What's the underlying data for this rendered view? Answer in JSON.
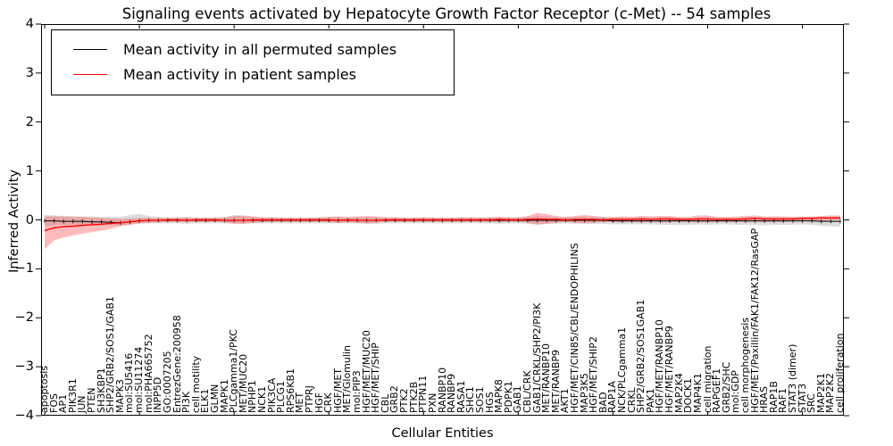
{
  "title": "Signaling events activated by Hepatocyte Growth Factor Receptor (c-Met) -- 54 samples",
  "axes": {
    "ylabel": "Inferred Activity",
    "xlabel": "Cellular Entities",
    "yticks": [
      "4",
      "3",
      "2",
      "1",
      "0",
      "−1",
      "−2",
      "−3",
      "−4"
    ],
    "ylim": [
      -4,
      4
    ]
  },
  "legend": [
    {
      "label": "Mean activity in all permuted samples",
      "color": "#000000"
    },
    {
      "label": "Mean activity in patient samples",
      "color": "#ff0000"
    }
  ],
  "colors": {
    "permuted_line": "#000000",
    "permuted_band": "#bfbfbf",
    "patient_line": "#ff0000",
    "patient_band": "#ff5555"
  },
  "chart_data": {
    "type": "line",
    "title": "Signaling events activated by Hepatocyte Growth Factor Receptor (c-Met) -- 54 samples",
    "xlabel": "Cellular Entities",
    "ylabel": "Inferred Activity",
    "ylim": [
      -4,
      4
    ],
    "grid": false,
    "legend_position": "upper left",
    "categories": [
      "apoptosis",
      "FOS",
      "AP1",
      "PIK3R1",
      "JUN",
      "PTEN",
      "SH3KBP1",
      "SHP2/GRB2/SOS1/GAB1",
      "MAPK3",
      "mol:SU5416",
      "mol:SU11274",
      "mol:PHA665752",
      "INPP5D",
      "GO:0007205",
      "EntrezGene:200958",
      "PI3K",
      "cell motility",
      "ELK1",
      "GLMN",
      "MAPK1",
      "PLCgamma1/PKC",
      "MET/MUC20",
      "NPHP1",
      "NCK1",
      "PIK3CA",
      "PLCG1",
      "RPS6KB1",
      "MET",
      "PTPRJ",
      "HGF",
      "CRK",
      "HGF/MET",
      "MET/Glomulin",
      "mol:PIP3",
      "HGF/MET/MUC20",
      "HGF/MET/SHIP",
      "CBL",
      "GRB2",
      "PTK2",
      "PTK2B",
      "PTPN11",
      "PXN",
      "RANBP10",
      "RANBP9",
      "RASA1",
      "SHC1",
      "SOS1",
      "HGS",
      "MAPK8",
      "PDPK1",
      "GAB1",
      "CBL/CRK",
      "GAB1/CRKL/SHP2/PI3K",
      "MET/RANBP10",
      "MET/RANBP9",
      "AKT1",
      "HGF/MET/CIN85/CBL/ENDOPHILINS",
      "MAP3K5",
      "HGF/MET/SHIP2",
      "BAD",
      "RAP1A",
      "NCK/PLCgamma1",
      "CRKL",
      "SHP2/GRB2/SOS1GAB1",
      "PAK1",
      "HGF/MET/RANBP10",
      "HGF/MET/RANBP9",
      "MAP2K4",
      "DOCK1",
      "MAP4K1",
      "cell migration",
      "RAPGEF1",
      "GRB2/SHC",
      "mol:GDP",
      "cell morphogenesis",
      "HGF/MET/Paxillin/FAK1/FAK12/RasGAP",
      "HRAS",
      "RAP1B",
      "RAF1",
      "STAT3 (dimer)",
      "STAT3",
      "SRC",
      "MAP2K1",
      "MAP2K2",
      "cell proliferation"
    ],
    "series": [
      {
        "name": "Mean activity in all permuted samples",
        "color": "#000000",
        "band_color": "#bfbfbf",
        "values": [
          -0.02,
          -0.02,
          -0.03,
          -0.03,
          -0.03,
          -0.04,
          -0.04,
          -0.05,
          -0.06,
          -0.04,
          -0.02,
          -0.01,
          -0.01,
          -0.01,
          -0.01,
          -0.01,
          -0.01,
          -0.01,
          -0.01,
          -0.01,
          -0.01,
          -0.01,
          -0.01,
          -0.01,
          -0.01,
          -0.01,
          -0.01,
          -0.01,
          -0.01,
          -0.01,
          -0.01,
          -0.01,
          -0.01,
          -0.01,
          -0.01,
          -0.01,
          -0.01,
          -0.01,
          -0.01,
          -0.01,
          -0.01,
          -0.01,
          -0.01,
          -0.01,
          -0.01,
          -0.01,
          -0.01,
          -0.01,
          -0.01,
          -0.01,
          -0.01,
          -0.01,
          -0.01,
          -0.01,
          -0.01,
          -0.01,
          -0.01,
          -0.01,
          -0.01,
          -0.01,
          -0.02,
          -0.02,
          -0.02,
          -0.02,
          -0.02,
          -0.02,
          -0.02,
          -0.02,
          -0.02,
          -0.02,
          -0.02,
          -0.02,
          -0.02,
          -0.02,
          -0.02,
          -0.02,
          -0.02,
          -0.02,
          -0.02,
          -0.02,
          -0.02,
          -0.02,
          -0.03,
          -0.03,
          -0.03
        ],
        "band_upper": [
          0.1,
          0.09,
          0.08,
          0.08,
          0.07,
          0.07,
          0.06,
          0.06,
          0.06,
          0.1,
          0.12,
          0.08,
          0.06,
          0.05,
          0.05,
          0.06,
          0.05,
          0.05,
          0.05,
          0.06,
          0.1,
          0.08,
          0.06,
          0.05,
          0.05,
          0.05,
          0.05,
          0.05,
          0.05,
          0.05,
          0.06,
          0.06,
          0.05,
          0.06,
          0.06,
          0.06,
          0.05,
          0.05,
          0.05,
          0.05,
          0.05,
          0.05,
          0.05,
          0.05,
          0.05,
          0.05,
          0.05,
          0.05,
          0.06,
          0.05,
          0.05,
          0.06,
          0.08,
          0.07,
          0.06,
          0.05,
          0.06,
          0.07,
          0.06,
          0.05,
          0.05,
          0.05,
          0.05,
          0.06,
          0.05,
          0.06,
          0.06,
          0.05,
          0.05,
          0.06,
          0.06,
          0.05,
          0.05,
          0.05,
          0.06,
          0.06,
          0.05,
          0.05,
          0.05,
          0.05,
          0.05,
          0.05,
          0.06,
          0.06,
          0.07
        ],
        "band_lower": [
          -0.12,
          -0.11,
          -0.1,
          -0.1,
          -0.1,
          -0.1,
          -0.1,
          -0.11,
          -0.12,
          -0.1,
          -0.08,
          -0.07,
          -0.07,
          -0.07,
          -0.07,
          -0.08,
          -0.07,
          -0.07,
          -0.07,
          -0.07,
          -0.08,
          -0.08,
          -0.07,
          -0.07,
          -0.07,
          -0.07,
          -0.07,
          -0.07,
          -0.07,
          -0.07,
          -0.07,
          -0.07,
          -0.07,
          -0.07,
          -0.08,
          -0.08,
          -0.07,
          -0.07,
          -0.07,
          -0.07,
          -0.07,
          -0.07,
          -0.07,
          -0.07,
          -0.07,
          -0.07,
          -0.07,
          -0.07,
          -0.08,
          -0.07,
          -0.07,
          -0.08,
          -0.09,
          -0.08,
          -0.08,
          -0.07,
          -0.08,
          -0.08,
          -0.08,
          -0.08,
          -0.09,
          -0.09,
          -0.09,
          -0.09,
          -0.09,
          -0.1,
          -0.1,
          -0.11,
          -0.1,
          -0.09,
          -0.1,
          -0.09,
          -0.09,
          -0.1,
          -0.1,
          -0.1,
          -0.11,
          -0.1,
          -0.1,
          -0.1,
          -0.09,
          -0.1,
          -0.12,
          -0.13,
          -0.14
        ]
      },
      {
        "name": "Mean activity in patient samples",
        "color": "#ff0000",
        "band_color": "#ff5555",
        "values": [
          -0.22,
          -0.16,
          -0.14,
          -0.13,
          -0.11,
          -0.1,
          -0.09,
          -0.07,
          -0.06,
          -0.04,
          -0.02,
          -0.01,
          -0.01,
          0.0,
          0.0,
          -0.01,
          0.0,
          0.0,
          0.0,
          -0.01,
          -0.01,
          -0.01,
          0.0,
          0.0,
          0.0,
          0.0,
          0.0,
          0.0,
          0.0,
          0.0,
          0.0,
          -0.01,
          0.0,
          -0.01,
          -0.01,
          -0.01,
          0.0,
          0.0,
          0.0,
          0.0,
          0.0,
          0.0,
          0.0,
          0.0,
          0.0,
          0.0,
          0.0,
          0.0,
          0.01,
          0.0,
          0.0,
          0.01,
          0.02,
          0.01,
          0.01,
          0.0,
          0.01,
          0.01,
          0.01,
          0.0,
          0.01,
          0.01,
          0.01,
          0.02,
          0.01,
          0.02,
          0.02,
          0.01,
          0.01,
          0.02,
          0.02,
          0.01,
          0.01,
          0.01,
          0.02,
          0.03,
          0.02,
          0.02,
          0.02,
          0.02,
          0.03,
          0.03,
          0.04,
          0.04,
          0.04
        ],
        "band_upper": [
          0.07,
          0.07,
          0.07,
          0.06,
          0.06,
          0.05,
          0.04,
          0.03,
          0.02,
          0.03,
          0.04,
          0.04,
          0.04,
          0.04,
          0.04,
          0.05,
          0.04,
          0.04,
          0.04,
          0.05,
          0.08,
          0.09,
          0.07,
          0.05,
          0.05,
          0.04,
          0.04,
          0.04,
          0.04,
          0.05,
          0.06,
          0.07,
          0.06,
          0.07,
          0.08,
          0.07,
          0.05,
          0.05,
          0.04,
          0.04,
          0.05,
          0.04,
          0.04,
          0.04,
          0.05,
          0.05,
          0.04,
          0.05,
          0.06,
          0.05,
          0.05,
          0.08,
          0.14,
          0.12,
          0.08,
          0.06,
          0.08,
          0.1,
          0.08,
          0.06,
          0.06,
          0.07,
          0.06,
          0.08,
          0.07,
          0.08,
          0.08,
          0.06,
          0.06,
          0.09,
          0.09,
          0.06,
          0.06,
          0.07,
          0.08,
          0.09,
          0.07,
          0.07,
          0.07,
          0.06,
          0.07,
          0.07,
          0.08,
          0.09,
          0.09
        ],
        "band_lower": [
          -0.6,
          -0.42,
          -0.36,
          -0.32,
          -0.28,
          -0.25,
          -0.22,
          -0.18,
          -0.13,
          -0.1,
          -0.07,
          -0.06,
          -0.05,
          -0.04,
          -0.04,
          -0.05,
          -0.04,
          -0.04,
          -0.04,
          -0.05,
          -0.08,
          -0.08,
          -0.06,
          -0.05,
          -0.04,
          -0.04,
          -0.04,
          -0.04,
          -0.04,
          -0.04,
          -0.05,
          -0.06,
          -0.05,
          -0.06,
          -0.07,
          -0.06,
          -0.04,
          -0.04,
          -0.04,
          -0.04,
          -0.04,
          -0.04,
          -0.04,
          -0.04,
          -0.04,
          -0.04,
          -0.04,
          -0.04,
          -0.05,
          -0.04,
          -0.04,
          -0.06,
          -0.1,
          -0.08,
          -0.06,
          -0.04,
          -0.06,
          -0.07,
          -0.06,
          -0.04,
          -0.04,
          -0.05,
          -0.04,
          -0.05,
          -0.04,
          -0.05,
          -0.05,
          -0.04,
          -0.04,
          -0.05,
          -0.05,
          -0.04,
          -0.04,
          -0.04,
          -0.04,
          -0.04,
          -0.04,
          -0.04,
          -0.04,
          -0.03,
          -0.03,
          -0.02,
          -0.02,
          -0.01,
          0.0
        ]
      }
    ]
  }
}
